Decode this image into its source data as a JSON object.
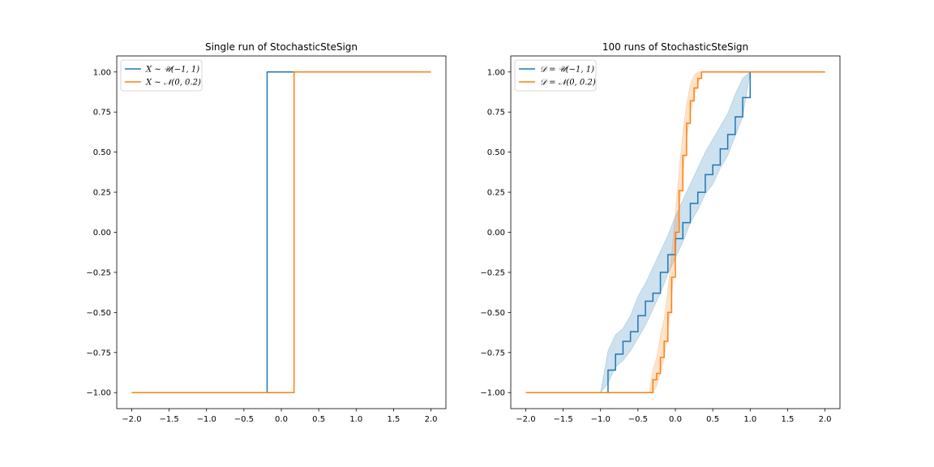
{
  "colors": {
    "blue": "#1f77b4",
    "orange": "#ff7f0e",
    "blue_band": "#1f77b4",
    "orange_band": "#ff7f0e"
  },
  "chart_data": [
    {
      "type": "line",
      "title": "Single run of StochasticSteSign",
      "xlabel": "",
      "ylabel": "",
      "xlim": [
        -2.2,
        2.2
      ],
      "ylim": [
        -1.1,
        1.1
      ],
      "xticks": [
        "−2.0",
        "−1.5",
        "−1.0",
        "−0.5",
        "0.0",
        "0.5",
        "1.0",
        "1.5",
        "2.0"
      ],
      "yticks": [
        "−1.00",
        "−0.75",
        "−0.50",
        "−0.25",
        "0.00",
        "0.25",
        "0.50",
        "0.75",
        "1.00"
      ],
      "grid": false,
      "legend_position": "top-left",
      "series": [
        {
          "name": "X ∼ 𝒰(−1, 1)",
          "color": "#1f77b4",
          "x": [
            -2.0,
            -0.19,
            -0.19,
            2.0
          ],
          "y": [
            -1.0,
            -1.0,
            1.0,
            1.0
          ]
        },
        {
          "name": "X ∼ 𝒩(0, 0.2)",
          "color": "#ff7f0e",
          "x": [
            -2.0,
            0.17,
            0.17,
            2.0
          ],
          "y": [
            -1.0,
            -1.0,
            1.0,
            1.0
          ]
        }
      ]
    },
    {
      "type": "line",
      "title": "100 runs of StochasticSteSign",
      "xlabel": "",
      "ylabel": "",
      "xlim": [
        -2.2,
        2.2
      ],
      "ylim": [
        -1.1,
        1.1
      ],
      "xticks": [
        "−2.0",
        "−1.5",
        "−1.0",
        "−0.5",
        "0.0",
        "0.5",
        "1.0",
        "1.5",
        "2.0"
      ],
      "yticks": [
        "−1.00",
        "−0.75",
        "−0.50",
        "−0.25",
        "0.00",
        "0.25",
        "0.50",
        "0.75",
        "1.00"
      ],
      "grid": false,
      "legend_position": "top-left",
      "series": [
        {
          "name": "𝒟 = 𝒰(−1, 1)",
          "color": "#1f77b4",
          "x": [
            -2.0,
            -1.0,
            -0.9,
            -0.8,
            -0.7,
            -0.6,
            -0.5,
            -0.4,
            -0.3,
            -0.2,
            -0.1,
            0.0,
            0.1,
            0.2,
            0.3,
            0.4,
            0.5,
            0.6,
            0.7,
            0.8,
            0.9,
            1.0,
            2.0
          ],
          "y": [
            -1.0,
            -1.0,
            -0.86,
            -0.76,
            -0.68,
            -0.62,
            -0.52,
            -0.43,
            -0.38,
            -0.25,
            -0.14,
            -0.04,
            0.06,
            0.18,
            0.25,
            0.36,
            0.42,
            0.52,
            0.61,
            0.72,
            0.84,
            1.0,
            1.0
          ],
          "band_lower": [
            -1.0,
            -1.0,
            -0.94,
            -0.84,
            -0.8,
            -0.74,
            -0.66,
            -0.58,
            -0.48,
            -0.38,
            -0.26,
            -0.16,
            -0.06,
            0.06,
            0.14,
            0.24,
            0.3,
            0.4,
            0.48,
            0.6,
            0.72,
            1.0,
            1.0
          ],
          "band_upper": [
            -1.0,
            -1.0,
            -0.74,
            -0.64,
            -0.6,
            -0.52,
            -0.4,
            -0.32,
            -0.22,
            -0.12,
            -0.02,
            0.1,
            0.2,
            0.3,
            0.4,
            0.5,
            0.58,
            0.66,
            0.74,
            0.86,
            0.96,
            1.0,
            1.0
          ]
        },
        {
          "name": "𝒟 = 𝒩(0, 0.2)",
          "color": "#ff7f0e",
          "x": [
            -2.0,
            -0.35,
            -0.3,
            -0.25,
            -0.2,
            -0.15,
            -0.1,
            -0.05,
            0.0,
            0.05,
            0.1,
            0.15,
            0.2,
            0.25,
            0.3,
            0.35,
            2.0
          ],
          "y": [
            -1.0,
            -1.0,
            -0.92,
            -0.88,
            -0.78,
            -0.68,
            -0.5,
            -0.28,
            0.0,
            0.26,
            0.48,
            0.68,
            0.82,
            0.9,
            0.96,
            1.0,
            1.0
          ],
          "band_lower": [
            -1.0,
            -1.0,
            -1.0,
            -0.96,
            -0.88,
            -0.78,
            -0.62,
            -0.42,
            -0.12,
            0.14,
            0.36,
            0.58,
            0.74,
            0.86,
            0.92,
            1.0,
            1.0
          ],
          "band_upper": [
            -1.0,
            -1.0,
            -0.86,
            -0.78,
            -0.64,
            -0.54,
            -0.36,
            -0.14,
            0.12,
            0.38,
            0.62,
            0.8,
            0.92,
            0.98,
            1.0,
            1.0,
            1.0
          ]
        }
      ]
    }
  ]
}
